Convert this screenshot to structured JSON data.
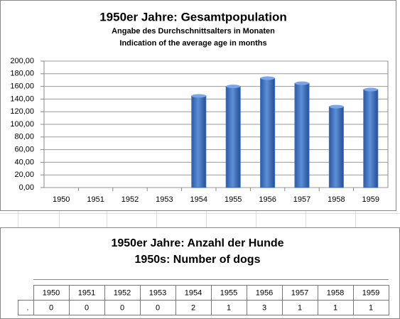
{
  "chart_data": {
    "type": "bar",
    "title": "1950er Jahre: Gesamtpopulation",
    "subtitle": [
      "Angabe des Durchschnittsalters in Monaten",
      "Indication of the average age in months"
    ],
    "categories": [
      "1950",
      "1951",
      "1952",
      "1953",
      "1954",
      "1955",
      "1956",
      "1957",
      "1958",
      "1959"
    ],
    "values": [
      null,
      null,
      null,
      null,
      145,
      160,
      173,
      165,
      128,
      155
    ],
    "color": "#3a6fc0",
    "ylim": [
      0,
      200
    ],
    "yticks": [
      {
        "value": 0,
        "label": "0,00"
      },
      {
        "value": 20,
        "label": "20,00"
      },
      {
        "value": 40,
        "label": "40,00"
      },
      {
        "value": 60,
        "label": "60,00"
      },
      {
        "value": 80,
        "label": "80,00"
      },
      {
        "value": 100,
        "label": "100,00"
      },
      {
        "value": 120,
        "label": "120,00"
      },
      {
        "value": 140,
        "label": "140,00"
      },
      {
        "value": 160,
        "label": "160,00"
      },
      {
        "value": 180,
        "label": "180,00"
      },
      {
        "value": 200,
        "label": "200,00"
      }
    ],
    "grid": true
  },
  "table": {
    "title": [
      "1950er Jahre: Anzahl der Hunde",
      "1950s:  Number of dogs"
    ],
    "columns": [
      "1950",
      "1951",
      "1952",
      "1953",
      "1954",
      "1955",
      "1956",
      "1957",
      "1958",
      "1959"
    ],
    "rows": [
      [
        ".",
        0,
        0,
        0,
        0,
        2,
        1,
        3,
        1,
        1,
        1
      ]
    ]
  }
}
